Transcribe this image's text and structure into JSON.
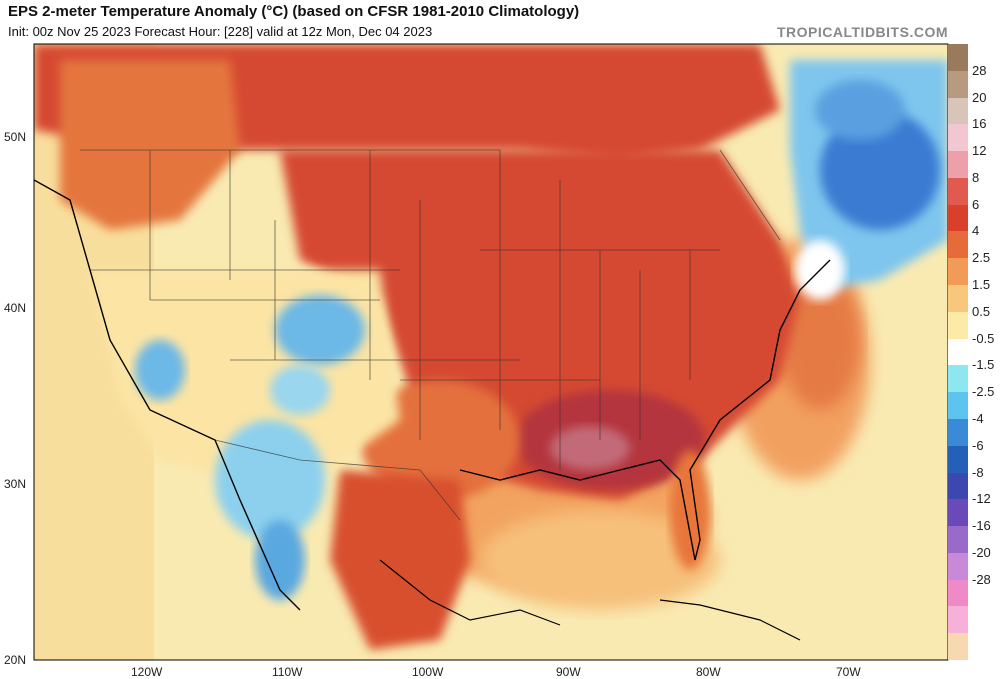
{
  "header": {
    "title": "EPS 2-meter Temperature Anomaly (°C) (based on CFSR 1981-2010 Climatology)",
    "subtitle": "Init: 00z Nov 25 2023   Forecast Hour: [228]   valid at 12z Mon, Dec 04 2023",
    "credit": "TROPICALTIDBITS.COM"
  },
  "axes": {
    "lat_labels": [
      "50N",
      "40N",
      "30N",
      "20N"
    ],
    "lon_labels": [
      "120W",
      "110W",
      "100W",
      "90W",
      "80W",
      "70W"
    ]
  },
  "colorbar": {
    "labels": [
      "28",
      "20",
      "16",
      "12",
      "8",
      "6",
      "4",
      "2.5",
      "1.5",
      "0.5",
      "-0.5",
      "-1.5",
      "-2.5",
      "-4",
      "-6",
      "-8",
      "-12",
      "-16",
      "-20",
      "-28"
    ],
    "colors": [
      "#9a7a5c",
      "#b89a80",
      "#d8c4b8",
      "#f3c7d2",
      "#eda0aa",
      "#e05a50",
      "#d8402c",
      "#e66a3a",
      "#f29a58",
      "#f7c77c",
      "#fbeaa8",
      "#ffffff",
      "#8ee6f0",
      "#5cc4ee",
      "#3a8ad8",
      "#2560b8",
      "#3c48b0",
      "#6a4ab8",
      "#9a6ac8",
      "#c88ad8",
      "#ee8ac8",
      "#f7b0d8",
      "#f8d8b0"
    ]
  },
  "legend_colors": {
    "ocean": "#f9edb6",
    "warm_strong": "#b0303a",
    "warm": "#d64a32",
    "mild": "#f09a5a",
    "neutral": "#fbe7a8",
    "cool": "#6cc2ea",
    "cold": "#3a7cd2"
  }
}
